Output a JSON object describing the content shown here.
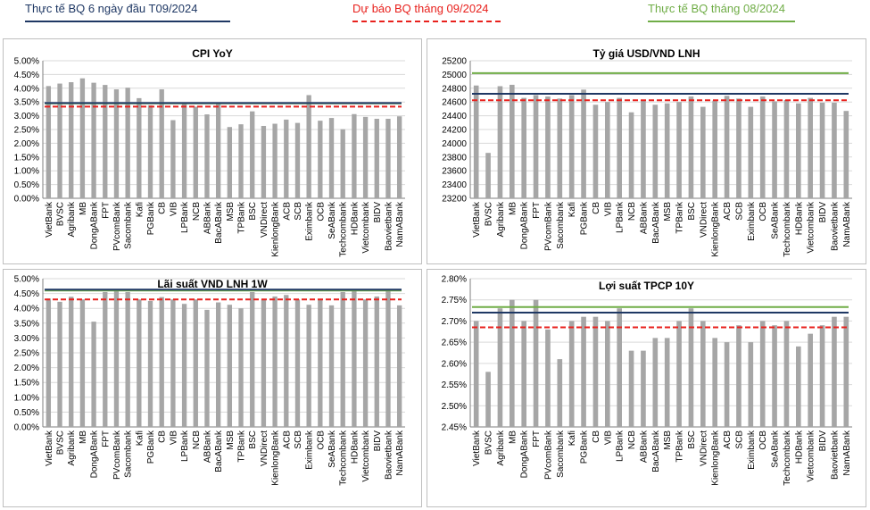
{
  "legend": {
    "actual": "Thực tế BQ 6 ngày đầu T09/2024",
    "forecast": "Dự báo BQ tháng 09/2024",
    "previous": "Thực tế BQ tháng 08/2024"
  },
  "colors": {
    "bar": "#a6a6a6",
    "actual": "#1f3864",
    "forecast": "#e8211d",
    "previous": "#70ad47",
    "grid": "#d9d9d9"
  },
  "chart_data": [
    {
      "type": "bar",
      "title": "CPI YoY",
      "categories": [
        "VietBank",
        "BVSC",
        "Agribank",
        "MB",
        "DongABank",
        "FPT",
        "PVcomBank",
        "Sacombank",
        "Kafi",
        "PGBank",
        "CB",
        "VIB",
        "LPBank",
        "NCB",
        "ABBank",
        "BacABank",
        "MSB",
        "TPBank",
        "BSC",
        "VNDirect",
        "KienlongBank",
        "ACB",
        "SCB",
        "Eximbank",
        "OCB",
        "SeABank",
        "Techcombank",
        "HDBank",
        "Vietcombank",
        "BIDV",
        "Baovietbank",
        "NamABank"
      ],
      "values": [
        4.08,
        4.17,
        4.22,
        4.36,
        4.2,
        4.12,
        3.96,
        4.02,
        3.64,
        3.38,
        3.96,
        2.84,
        3.45,
        3.33,
        3.05,
        3.44,
        2.59,
        2.69,
        3.16,
        2.63,
        2.71,
        2.86,
        2.74,
        3.75,
        2.82,
        2.92,
        2.51,
        3.06,
        2.96,
        2.89,
        2.89,
        2.98
      ],
      "lines": {
        "actual": 3.46,
        "forecast": 3.33,
        "previous": 3.45
      },
      "ylim": [
        0,
        5
      ],
      "ytick_step": 0.5,
      "y_format": "percent2",
      "grid": true
    },
    {
      "type": "bar",
      "title": "Tỷ giá USD/VND LNH",
      "categories": [
        "VietBank",
        "BVSC",
        "Agribank",
        "MB",
        "DongABank",
        "FPT",
        "PVcomBank",
        "Sacombank",
        "Kafi",
        "PGBank",
        "CB",
        "VIB",
        "LPBank",
        "NCB",
        "ABBank",
        "BacABank",
        "MSB",
        "TPBank",
        "BSC",
        "VNDirect",
        "KienlongBank",
        "ACB",
        "SCB",
        "Eximbank",
        "OCB",
        "SeABank",
        "Techcombank",
        "HDBank",
        "Vietcombank",
        "BIDV",
        "Baovietbank",
        "NamABank"
      ],
      "values": [
        24840,
        23860,
        24830,
        24850,
        24660,
        24700,
        24680,
        24650,
        24700,
        24780,
        24560,
        24600,
        24660,
        24450,
        24620,
        24560,
        24580,
        24600,
        24680,
        24530,
        24620,
        24690,
        24650,
        24530,
        24680,
        24610,
        24630,
        24580,
        24660,
        24590,
        24590,
        24470
      ],
      "lines": {
        "actual": 24720,
        "forecast": 24625,
        "previous": 25020
      },
      "ylim": [
        23200,
        25200
      ],
      "ytick_step": 200,
      "y_format": "int",
      "grid": true
    },
    {
      "type": "bar",
      "title": "Lãi suất VND LNH 1W",
      "categories": [
        "VietBank",
        "BVSC",
        "Agribank",
        "MB",
        "DongABank",
        "FPT",
        "PVcomBank",
        "Sacombank",
        "Kafi",
        "PGBank",
        "CB",
        "VIB",
        "LPBank",
        "NCB",
        "ABBank",
        "BacABank",
        "MSB",
        "TPBank",
        "BSC",
        "VNDirect",
        "KienlongBank",
        "ACB",
        "SCB",
        "Eximbank",
        "OCB",
        "SeABank",
        "Techcombank",
        "HDBank",
        "Vietcombank",
        "BIDV",
        "Baovietbank",
        "NamABank"
      ],
      "values": [
        4.33,
        4.22,
        4.39,
        4.3,
        3.55,
        4.55,
        4.6,
        4.55,
        4.3,
        4.25,
        4.38,
        4.3,
        4.15,
        4.3,
        3.95,
        4.2,
        4.12,
        4.0,
        4.55,
        4.3,
        4.4,
        4.45,
        4.3,
        4.12,
        4.3,
        4.1,
        4.55,
        4.58,
        4.3,
        4.4,
        4.58,
        4.1
      ],
      "lines": {
        "actual": 4.63,
        "forecast": 4.3,
        "previous": 4.6
      },
      "ylim": [
        0,
        5
      ],
      "ytick_step": 0.5,
      "y_format": "percent2",
      "grid": true
    },
    {
      "type": "bar",
      "title": "Lợi suất TPCP 10Y",
      "categories": [
        "VietBank",
        "BVSC",
        "Agribank",
        "MB",
        "DongABank",
        "FPT",
        "PVcomBank",
        "Sacombank",
        "Kafi",
        "PGBank",
        "CB",
        "VIB",
        "LPBank",
        "NCB",
        "ABBank",
        "BacABank",
        "MSB",
        "TPBank",
        "BSC",
        "VNDirect",
        "KienlongBank",
        "ACB",
        "SCB",
        "Eximbank",
        "OCB",
        "SeABank",
        "Techcombank",
        "HDBank",
        "Vietcombank",
        "BIDV",
        "Baovietbank",
        "NamABank"
      ],
      "values": [
        2.7,
        2.58,
        2.73,
        2.75,
        2.7,
        2.75,
        2.68,
        2.61,
        2.7,
        2.71,
        2.71,
        2.7,
        2.73,
        2.63,
        2.63,
        2.66,
        2.66,
        2.7,
        2.73,
        2.7,
        2.66,
        2.65,
        2.69,
        2.65,
        2.7,
        2.69,
        2.7,
        2.64,
        2.67,
        2.69,
        2.71,
        2.71
      ],
      "lines": {
        "actual": 2.72,
        "forecast": 2.685,
        "previous": 2.733
      },
      "ylim": [
        2.45,
        2.8
      ],
      "ytick_step": 0.05,
      "y_format": "percent2",
      "grid": true
    }
  ]
}
